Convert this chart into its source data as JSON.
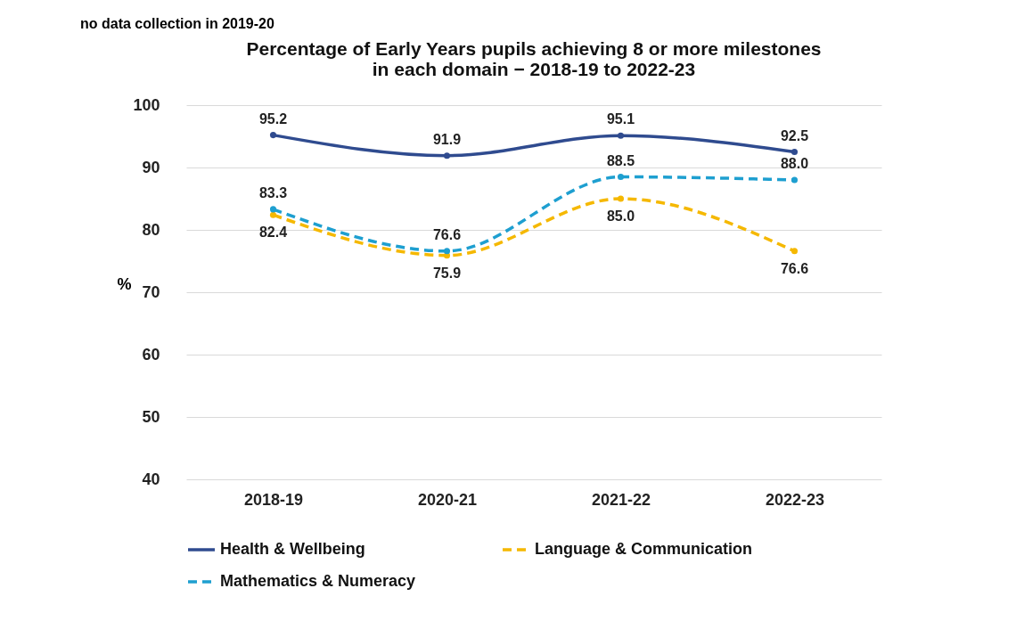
{
  "chart_data": {
    "type": "line",
    "title": "Percentage of Early Years pupils achieving 8 or more milestones\nin each domain − 2018-19 to 2022-23",
    "ylabel": "%",
    "annotations": [
      "no data collection in 2019-20"
    ],
    "categories": [
      "2018-19",
      "2020-21",
      "2021-22",
      "2022-23"
    ],
    "series": [
      {
        "name": "Health & Wellbeing",
        "color": "#2f4b8f",
        "line_style": "solid",
        "values": [
          95.2,
          91.9,
          95.1,
          92.5
        ],
        "value_labels": [
          "95.2",
          "91.9",
          "95.1",
          "92.5"
        ]
      },
      {
        "name": "Language & Communication",
        "color": "#f5b800",
        "line_style": "dashed",
        "values": [
          82.4,
          75.9,
          85.0,
          76.6
        ],
        "value_labels": [
          "82.4",
          "75.9",
          "85.0",
          "76.6"
        ]
      },
      {
        "name": "Mathematics & Numeracy",
        "color": "#1e9fd0",
        "line_style": "dashed",
        "values": [
          83.3,
          76.6,
          88.5,
          88.0
        ],
        "value_labels": [
          "83.3",
          "76.6",
          "88.5",
          "88.0"
        ]
      }
    ],
    "ylim": [
      40,
      100
    ],
    "yticks": [
      40,
      50,
      60,
      70,
      80,
      90,
      100
    ],
    "grid": "y",
    "legend": "bottom",
    "marker": "circle"
  }
}
